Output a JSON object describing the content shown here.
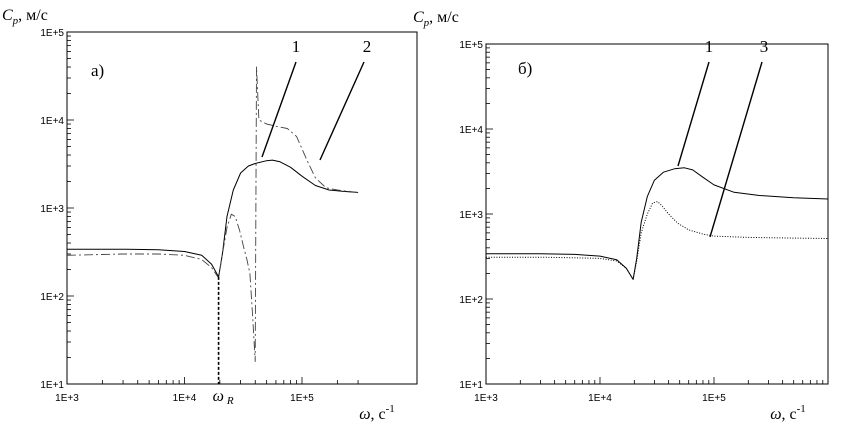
{
  "chart_data": [
    {
      "type": "line",
      "panel_label": "а)",
      "ylabel": "C_p, м/с",
      "xlabel": "ω, с-1",
      "x_scale": "log",
      "y_scale": "log",
      "xlim": [
        1000,
        300000
      ],
      "ylim": [
        10,
        100000
      ],
      "x_ticks": [
        "1E+3",
        "1E+4",
        "1E+5"
      ],
      "y_ticks": [
        "1E+1",
        "1E+2",
        "1E+3",
        "1E+4",
        "1E+5"
      ],
      "marker_label": "ω R",
      "marker_x": 19500,
      "curve_labels": [
        "1",
        "2"
      ],
      "series": [
        {
          "id": "1",
          "style": "solid",
          "x": [
            1000,
            3000,
            6000,
            10000,
            14000,
            17000,
            19500,
            21000,
            23000,
            26000,
            30000,
            35000,
            40000,
            50000,
            56000,
            65000,
            80000,
            100000,
            130000,
            170000,
            220000,
            300000
          ],
          "y": [
            340,
            340,
            335,
            320,
            290,
            230,
            165,
            300,
            800,
            1600,
            2500,
            3000,
            3200,
            3450,
            3500,
            3350,
            2900,
            2300,
            1800,
            1600,
            1550,
            1500
          ]
        },
        {
          "id": "2",
          "style": "dashed",
          "x": [
            1000,
            3000,
            6000,
            10000,
            14000,
            17000,
            19500,
            21000,
            23000,
            25000,
            27000,
            29500,
            32000,
            34000,
            36000,
            38000,
            40000,
            41000,
            43000,
            50000,
            60000,
            75000,
            90000,
            110000,
            130000,
            160000,
            200000,
            300000
          ],
          "y": [
            290,
            300,
            300,
            290,
            260,
            210,
            160,
            300,
            600,
            850,
            800,
            550,
            350,
            260,
            180,
            60,
            18,
            40000,
            10000,
            9000,
            8500,
            8000,
            6500,
            3500,
            2200,
            1700,
            1600,
            1500
          ]
        }
      ]
    },
    {
      "type": "line",
      "panel_label": "б)",
      "ylabel": "C_p, м/с",
      "xlabel": "ω, с-1",
      "x_scale": "log",
      "y_scale": "log",
      "xlim": [
        1000,
        1000000
      ],
      "ylim": [
        10,
        100000
      ],
      "x_ticks": [
        "1E+3",
        "1E+4",
        "1E+5"
      ],
      "y_ticks": [
        "1E+1",
        "1E+2",
        "1E+3",
        "1E+4",
        "1E+5"
      ],
      "curve_labels": [
        "1",
        "3"
      ],
      "series": [
        {
          "id": "1",
          "style": "solid",
          "x": [
            1000,
            3000,
            6000,
            10000,
            14000,
            17000,
            19500,
            21000,
            23000,
            26000,
            30000,
            36000,
            45000,
            55000,
            65000,
            80000,
            100000,
            150000,
            250000,
            500000,
            1000000
          ],
          "y": [
            340,
            340,
            335,
            320,
            290,
            230,
            170,
            300,
            800,
            1600,
            2500,
            3100,
            3400,
            3500,
            3300,
            2700,
            2200,
            1800,
            1650,
            1550,
            1500
          ]
        },
        {
          "id": "3",
          "style": "dotted",
          "x": [
            1000,
            3000,
            6000,
            10000,
            14000,
            17000,
            19500,
            21000,
            23000,
            26000,
            29000,
            32000,
            35000,
            40000,
            48000,
            60000,
            80000,
            100000,
            200000,
            500000,
            1000000
          ],
          "y": [
            310,
            310,
            305,
            300,
            280,
            230,
            170,
            280,
            600,
            1000,
            1350,
            1400,
            1250,
            1000,
            780,
            650,
            580,
            550,
            530,
            520,
            515
          ]
        }
      ]
    }
  ]
}
